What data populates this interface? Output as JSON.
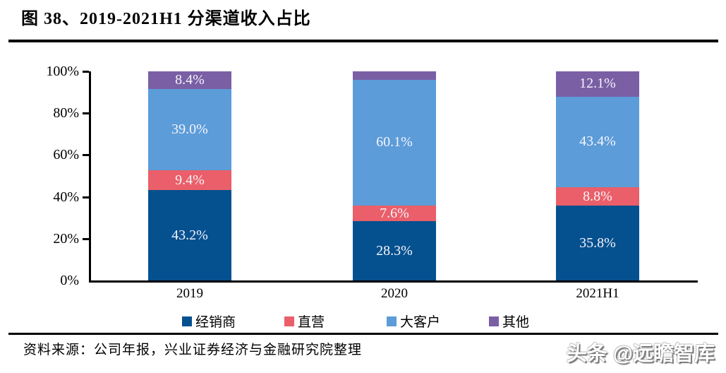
{
  "header": {
    "title": "图 38、2019-2021H1 分渠道收入占比"
  },
  "chart_data": {
    "type": "bar",
    "subtype": "stacked-100-percent",
    "categories": [
      "2019",
      "2020",
      "2021H1"
    ],
    "series": [
      {
        "name": "经销商",
        "color": "#05508F",
        "values": [
          43.2,
          28.3,
          35.8
        ],
        "labels": [
          "43.2%",
          "28.3%",
          "35.8%"
        ]
      },
      {
        "name": "直营",
        "color": "#EA5F69",
        "values": [
          9.4,
          7.6,
          8.8
        ],
        "labels": [
          "9.4%",
          "7.6%",
          "8.8%"
        ]
      },
      {
        "name": "大客户",
        "color": "#5C9CD9",
        "values": [
          39.0,
          60.1,
          43.4
        ],
        "labels": [
          "39.0%",
          "60.1%",
          "43.4%"
        ]
      },
      {
        "name": "其他",
        "color": "#7A5FA5",
        "values": [
          8.4,
          4.0,
          12.1
        ],
        "labels": [
          "8.4%",
          "",
          "12.1%"
        ]
      }
    ],
    "title": "",
    "xlabel": "",
    "ylabel": "",
    "ylim": [
      0,
      100
    ],
    "yticks": [
      "0%",
      "20%",
      "40%",
      "60%",
      "80%",
      "100%"
    ],
    "grid": false,
    "legend_position": "bottom"
  },
  "footer": {
    "source": "资料来源：公司年报，兴业证券经济与金融研究院整理",
    "watermark": "头条 @远瞻智库"
  }
}
